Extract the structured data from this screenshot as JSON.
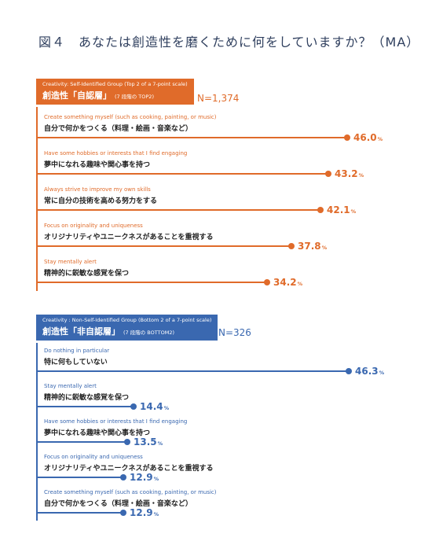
{
  "title": "図４　あなたは創造性を磨くために何をしていますか？（MA）",
  "colors": {
    "self": "#e06b2a",
    "nonself": "#3a68b0"
  },
  "chart_data": [
    {
      "type": "bar",
      "group_en": "Creativity: Self-Identified Group (Top 2 of a 7-point scale)",
      "group_ja": "創造性「自認層」",
      "group_note": "(7 段階の TOP2)",
      "n": "N=1,374",
      "unit": "%",
      "xlim": [
        0,
        50
      ],
      "items": [
        {
          "en": "Create something myself (such as cooking, painting, or music)",
          "ja": "自分で何かをつくる（料理・絵画・音楽など）",
          "value": 46.0,
          "label": "46.0"
        },
        {
          "en": "Have some hobbies or interests that I find engaging",
          "ja": "夢中になれる趣味や関心事を持つ",
          "value": 43.2,
          "label": "43.2"
        },
        {
          "en": "Always strive to improve my own skills",
          "ja": "常に自分の技術を高める努力をする",
          "value": 42.1,
          "label": "42.1"
        },
        {
          "en": "Focus on originality and uniqueness",
          "ja": "オリジナリティやユニークネスがあることを重視する",
          "value": 37.8,
          "label": "37.8"
        },
        {
          "en": "Stay mentally alert",
          "ja": "精神的に鋭敏な感覚を保つ",
          "value": 34.2,
          "label": "34.2"
        }
      ]
    },
    {
      "type": "bar",
      "group_en": "Creativity : Non-Self-Identified Group (Bottom 2 of a 7-point scale)",
      "group_ja": "創造性「非自認層」",
      "group_note": "(7 段階の BOTTOM2)",
      "n": "N=326",
      "unit": "%",
      "xlim": [
        0,
        50
      ],
      "items": [
        {
          "en": "Do nothing in particular",
          "ja": "特に何もしていない",
          "value": 46.3,
          "label": "46.3"
        },
        {
          "en": "Stay mentally alert",
          "ja": "精神的に鋭敏な感覚を保つ",
          "value": 14.4,
          "label": "14.4"
        },
        {
          "en": "Have some hobbies or interests that I find engaging",
          "ja": "夢中になれる趣味や関心事を持つ",
          "value": 13.5,
          "label": "13.5"
        },
        {
          "en": "Focus on originality and uniqueness",
          "ja": "オリジナリティやユニークネスがあることを重視する",
          "value": 12.9,
          "label": "12.9"
        },
        {
          "en": "Create something myself (such as cooking, painting, or music)",
          "ja": "自分で何かをつくる（料理・絵画・音楽など）",
          "value": 12.9,
          "label": "12.9"
        }
      ]
    }
  ]
}
